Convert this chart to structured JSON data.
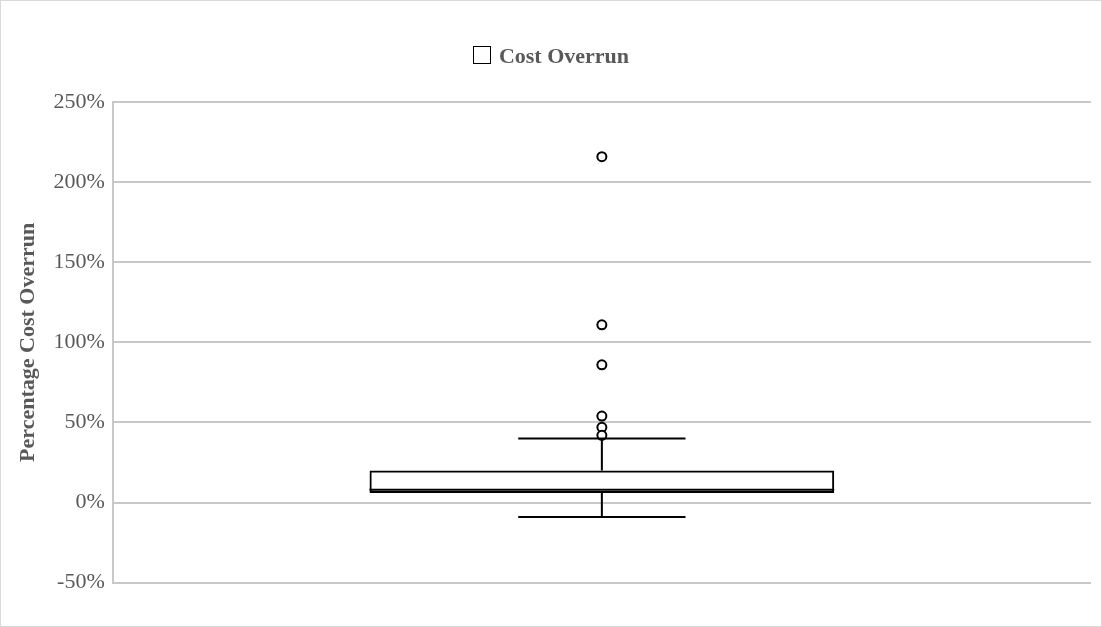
{
  "chart_data": {
    "type": "box",
    "categories": [
      null
    ],
    "series": [
      {
        "name": "Cost Overrun",
        "color": "#000000",
        "boxes": [
          {
            "low": -9,
            "q1": 6,
            "median": 8,
            "q3": 20,
            "high": 40,
            "outliers": [
              216,
              111,
              86,
              54,
              47,
              42
            ]
          }
        ]
      }
    ],
    "ylabel": "Percentage Cost Overrun",
    "ylim": [
      -50,
      250
    ],
    "yticks": [
      {
        "value": -50,
        "label": "-50%"
      },
      {
        "value": 0,
        "label": "0%"
      },
      {
        "value": 50,
        "label": "50%"
      },
      {
        "value": 100,
        "label": "100%"
      },
      {
        "value": 150,
        "label": "150%"
      },
      {
        "value": 200,
        "label": "200%"
      },
      {
        "value": 250,
        "label": "250%"
      }
    ],
    "grid": "y",
    "legend": "top"
  }
}
